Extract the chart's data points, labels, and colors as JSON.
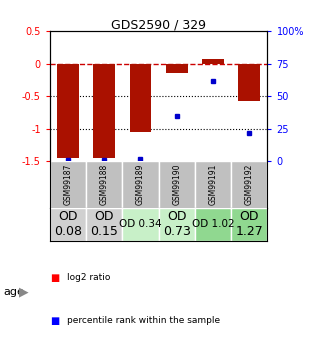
{
  "title": "GDS2590 / 329",
  "samples": [
    "GSM99187",
    "GSM99188",
    "GSM99189",
    "GSM99190",
    "GSM99191",
    "GSM99192"
  ],
  "log2_ratios": [
    -1.45,
    -1.45,
    -1.05,
    -0.15,
    0.07,
    -0.57
  ],
  "percentile_ranks": [
    1,
    1,
    2,
    35,
    62,
    22
  ],
  "ylim_left": [
    -1.5,
    0.5
  ],
  "ylim_right": [
    0,
    100
  ],
  "yticks_left": [
    -1.5,
    -1.0,
    -0.5,
    0.0,
    0.5
  ],
  "ytick_labels_left": [
    "-1.5",
    "-1",
    "-0.5",
    "0",
    "0.5"
  ],
  "yticks_right": [
    0,
    25,
    50,
    75,
    100
  ],
  "ytick_labels_right": [
    "0",
    "25",
    "50",
    "75",
    "100%"
  ],
  "bar_color": "#aa1100",
  "dot_color": "#0000cc",
  "zero_line_color": "#cc0000",
  "grid_color": "#000000",
  "bar_width": 0.6,
  "age_labels": [
    "OD\n0.08",
    "OD\n0.15",
    "OD 0.34",
    "OD\n0.73",
    "OD 1.02",
    "OD\n1.27"
  ],
  "age_bg_colors": [
    "#d0d0d0",
    "#d0d0d0",
    "#c8f0c8",
    "#c8f0c8",
    "#90d890",
    "#90d890"
  ],
  "age_font_sizes": [
    9,
    9,
    7.5,
    9,
    7.5,
    9
  ],
  "sample_bg_color": "#c0c0c0",
  "legend_red_label": "log2 ratio",
  "legend_blue_label": "percentile rank within the sample"
}
